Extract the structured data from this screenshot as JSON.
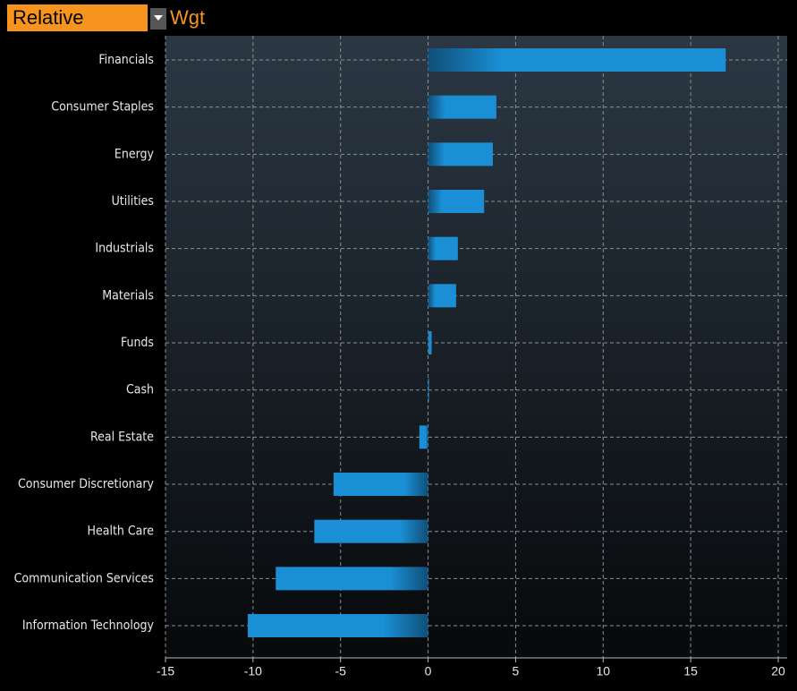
{
  "header": {
    "mode": "Relative",
    "field": "Wgt"
  },
  "chart_data": {
    "type": "bar",
    "orientation": "horizontal",
    "categories": [
      "Financials",
      "Consumer Staples",
      "Energy",
      "Utilities",
      "Industrials",
      "Materials",
      "Funds",
      "Cash",
      "Real Estate",
      "Consumer Discretionary",
      "Health Care",
      "Communication Services",
      "Information Technology"
    ],
    "values": [
      17.0,
      3.9,
      3.7,
      3.2,
      1.7,
      1.6,
      0.2,
      0.05,
      -0.5,
      -5.4,
      -6.5,
      -8.7,
      -10.3
    ],
    "color": "#1a8fd6",
    "xlim": [
      -15,
      20
    ],
    "xticks": [
      -15,
      -10,
      -5,
      0,
      5,
      10,
      15,
      20
    ],
    "grid": true
  }
}
